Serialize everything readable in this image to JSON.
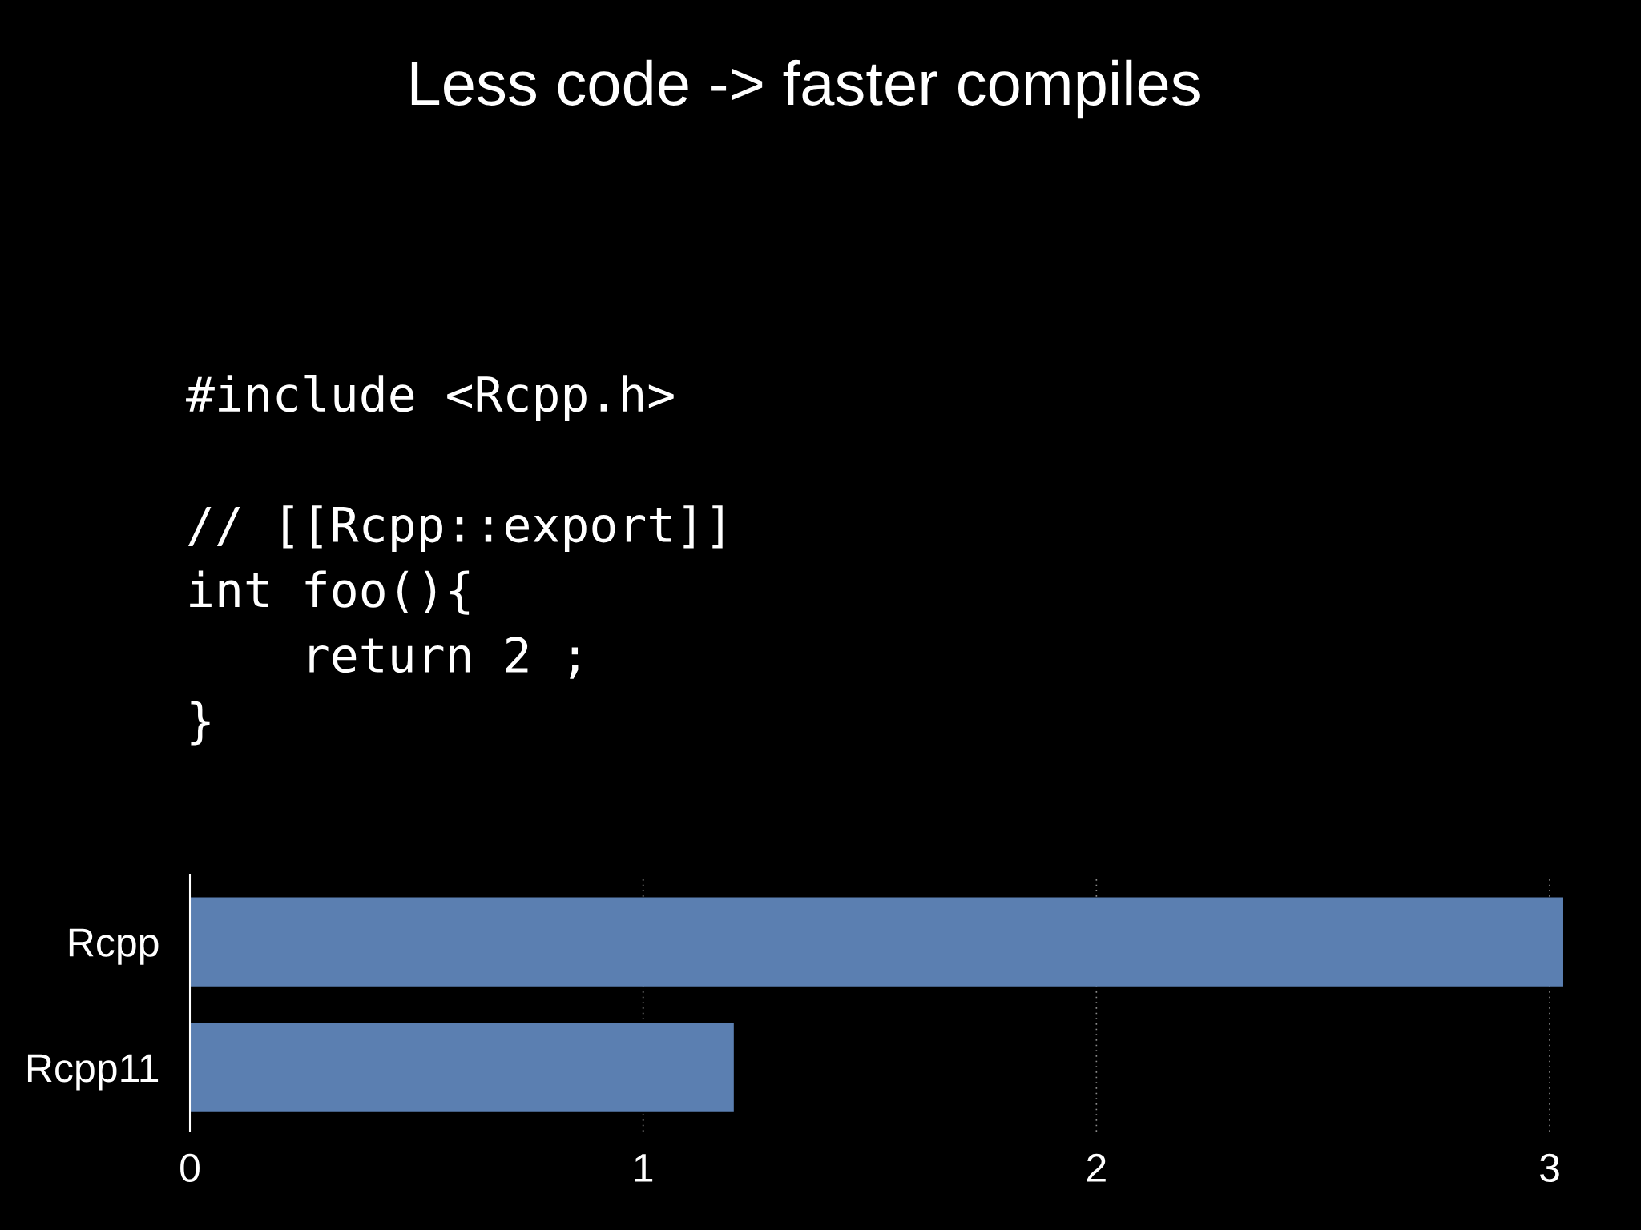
{
  "chart_data": {
    "type": "bar",
    "orientation": "horizontal",
    "title": "Less code -> faster compiles",
    "annotations": [
      "#include <Rcpp.h>\n\n// [[Rcpp::export]]\nint foo(){\n    return 2 ;\n}"
    ],
    "categories": [
      "Rcpp",
      "Rcpp11"
    ],
    "values": [
      3.03,
      1.2
    ],
    "color": "#5b7fb1",
    "xlim": [
      0,
      3.03
    ],
    "xticks": [
      0,
      1,
      2,
      3
    ],
    "grid": "x"
  }
}
